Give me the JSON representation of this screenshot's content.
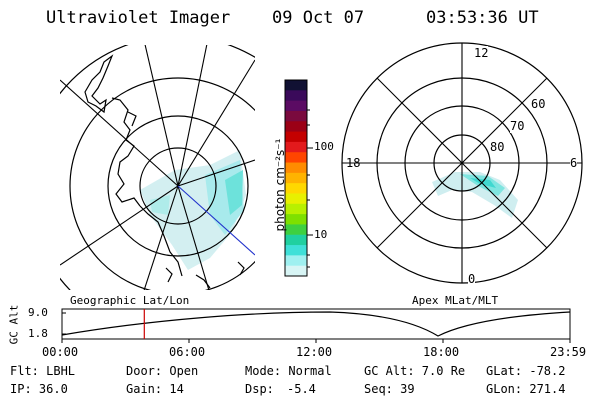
{
  "header": {
    "title": "Ultraviolet Imager",
    "date": "09 Oct 07",
    "time": "03:53:36 UT"
  },
  "colorbar": {
    "unit_label": "photon cm⁻²s⁻¹",
    "ticks": [
      "100",
      "10"
    ],
    "colors": [
      "#111133",
      "#3a0a5a",
      "#5b0b63",
      "#7a0a3e",
      "#9b0016",
      "#c40000",
      "#e31a1c",
      "#ff4500",
      "#ff8c00",
      "#ffb300",
      "#ffd800",
      "#e8f000",
      "#b8f000",
      "#7ee000",
      "#3ed040",
      "#20d0a0",
      "#3fe0d8",
      "#9ff0f0",
      "#d8f5f5"
    ]
  },
  "left_map": {
    "caption": "Geographic Lat/Lon"
  },
  "right_map": {
    "caption": "Apex MLat/MLT",
    "mlt_labels": {
      "top": "12",
      "left": "18",
      "right": "6",
      "bottom": "0"
    },
    "mlat_labels": [
      "60",
      "70",
      "80"
    ]
  },
  "altitude_plot": {
    "ylabel": "GC Alt",
    "yticks": [
      "9.0",
      "1.8"
    ],
    "xticks": [
      "00:00",
      "06:00",
      "12:00",
      "18:00",
      "23:59"
    ],
    "current_time_fraction": 0.162,
    "line_color": "#cc0000"
  },
  "info": {
    "flt": "Flt: LBHL",
    "door": "Door: Open",
    "mode": "Mode: Normal",
    "gc_alt": "GC Alt: 7.0 Re",
    "glat": "GLat: -78.2",
    "ip": "IP: 36.0",
    "gain": "Gain: 14",
    "dsp_label": "Dsp:",
    "dsp_value": "-5.4",
    "seq": "Seq: 39",
    "glon": "GLon: 271.4"
  }
}
